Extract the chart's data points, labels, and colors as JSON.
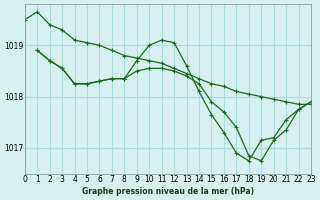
{
  "title": "Graphe pression niveau de la mer (hPa)",
  "background_color": "#d6f0f0",
  "grid_color": "#aadddd",
  "line_color": "#1a6b1a",
  "xlim": [
    0,
    23
  ],
  "ylim": [
    1016.5,
    1019.8
  ],
  "yticks": [
    1017,
    1018,
    1019
  ],
  "xticks": [
    0,
    1,
    2,
    3,
    4,
    5,
    6,
    7,
    8,
    9,
    10,
    11,
    12,
    13,
    14,
    15,
    16,
    17,
    18,
    19,
    20,
    21,
    22,
    23
  ],
  "series": [
    {
      "x": [
        0,
        1,
        2,
        3,
        4,
        5,
        6,
        7,
        8,
        9,
        10,
        11,
        12,
        13,
        14,
        15,
        16,
        17,
        18,
        19,
        20,
        21,
        22,
        23
      ],
      "y": [
        1019.5,
        1019.65,
        1019.4,
        1019.3,
        1019.1,
        1019.05,
        1019.0,
        1018.9,
        1018.8,
        1018.75,
        1018.7,
        1018.65,
        1018.55,
        1018.45,
        1018.35,
        1018.25,
        1018.2,
        1018.1,
        1018.05,
        1018.0,
        1017.95,
        1017.9,
        1017.85,
        1017.85
      ]
    },
    {
      "x": [
        1,
        2,
        3,
        4,
        5,
        6,
        7,
        8,
        9,
        10,
        11,
        12,
        13,
        14,
        15,
        16,
        17,
        18,
        19,
        20,
        21,
        22,
        23
      ],
      "y": [
        1018.9,
        1018.7,
        1018.55,
        1018.25,
        1018.25,
        1018.3,
        1018.35,
        1018.35,
        1018.7,
        1019.0,
        1019.1,
        1019.05,
        1018.6,
        1018.1,
        1017.65,
        1017.3,
        1016.9,
        1016.75,
        1017.15,
        1017.2,
        1017.55,
        1017.75,
        1017.9
      ]
    },
    {
      "x": [
        1,
        2,
        3,
        4,
        5,
        6,
        7,
        8,
        9,
        10,
        11,
        12,
        13,
        14,
        15,
        16,
        17,
        18,
        19,
        20,
        21,
        22,
        23
      ],
      "y": [
        1018.9,
        1018.7,
        1018.55,
        1018.25,
        1018.25,
        1018.3,
        1018.35,
        1018.35,
        1018.5,
        1018.55,
        1018.55,
        1018.5,
        1018.4,
        1018.25,
        1017.9,
        1017.7,
        1017.4,
        1016.85,
        1016.75,
        1017.15,
        1017.35,
        1017.75,
        1017.9
      ]
    }
  ]
}
